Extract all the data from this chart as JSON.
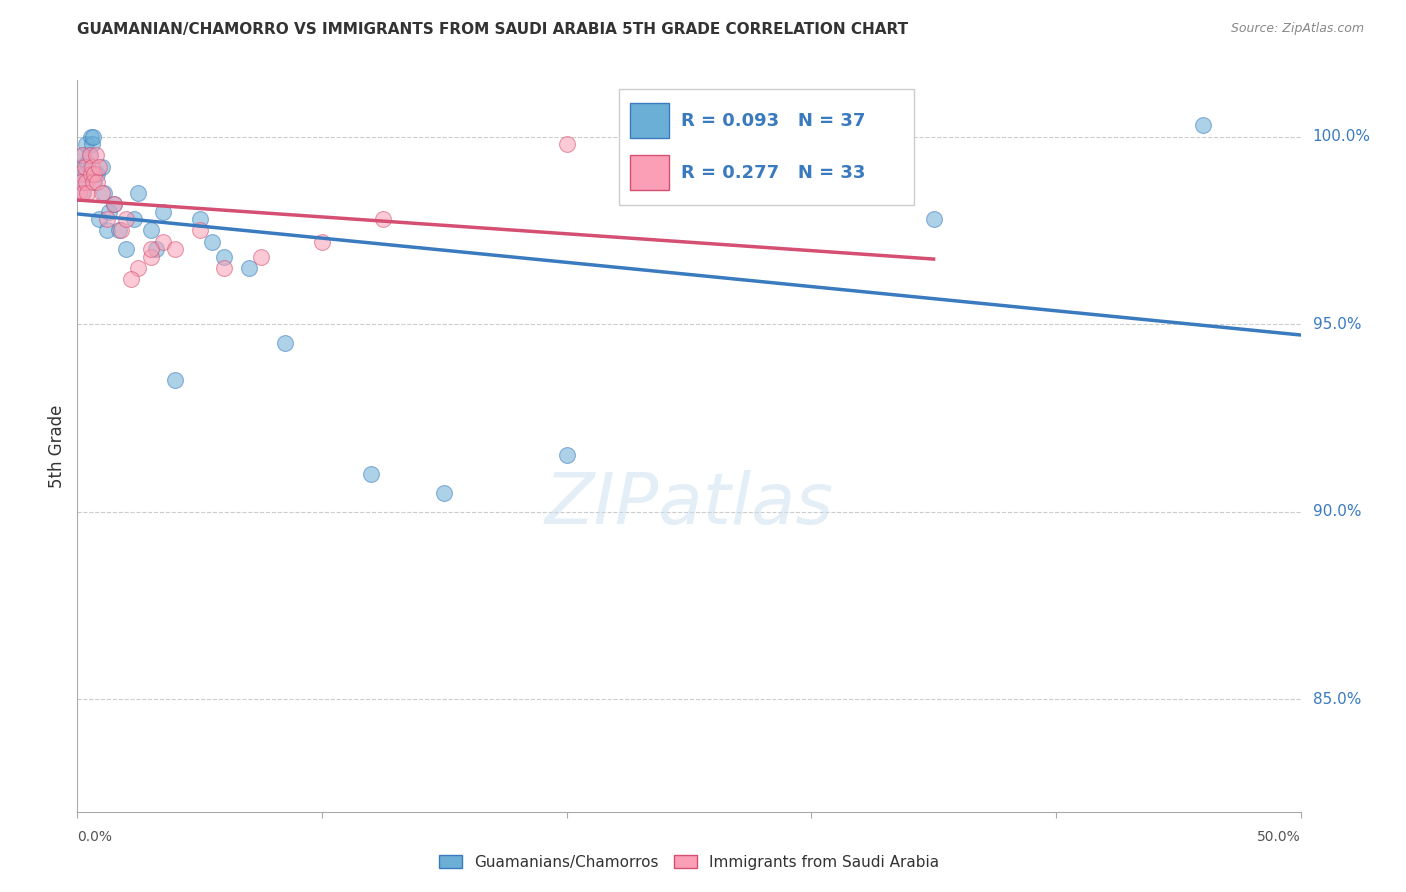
{
  "title": "GUAMANIAN/CHAMORRO VS IMMIGRANTS FROM SAUDI ARABIA 5TH GRADE CORRELATION CHART",
  "source": "Source: ZipAtlas.com",
  "ylabel": "5th Grade",
  "x_range": [
    0.0,
    50.0
  ],
  "y_range": [
    82.0,
    101.5
  ],
  "blue_R": 0.093,
  "blue_N": 37,
  "pink_R": 0.277,
  "pink_N": 33,
  "blue_color": "#6baed6",
  "pink_color": "#fa9fb5",
  "trendline_blue": "#3a7abf",
  "trendline_pink": "#d44f72",
  "legend_label_blue": "Guamanians/Chamorros",
  "legend_label_pink": "Immigrants from Saudi Arabia",
  "watermark": "ZIPatlas",
  "gridline_color": "#cccccc",
  "gridline_y": [
    85.0,
    90.0,
    95.0,
    100.0
  ],
  "right_tick_labels": [
    "85.0%",
    "90.0%",
    "95.0%",
    "100.0%"
  ],
  "blue_scatter_x": [
    0.1,
    0.15,
    0.2,
    0.25,
    0.3,
    0.35,
    0.4,
    0.5,
    0.55,
    0.6,
    0.65,
    0.7,
    0.8,
    0.9,
    1.0,
    1.1,
    1.2,
    1.3,
    1.5,
    1.7,
    2.0,
    2.3,
    2.5,
    3.0,
    3.5,
    4.0,
    5.0,
    5.5,
    6.0,
    7.0,
    3.2,
    8.5,
    12.0,
    15.0,
    20.0,
    35.0,
    46.0
  ],
  "blue_scatter_y": [
    98.8,
    99.2,
    98.5,
    99.5,
    99.0,
    99.8,
    99.3,
    99.5,
    100.0,
    99.8,
    100.0,
    98.8,
    99.0,
    97.8,
    99.2,
    98.5,
    97.5,
    98.0,
    98.2,
    97.5,
    97.0,
    97.8,
    98.5,
    97.5,
    98.0,
    93.5,
    97.8,
    97.2,
    96.8,
    96.5,
    97.0,
    94.5,
    91.0,
    90.5,
    91.5,
    97.8,
    100.3
  ],
  "pink_scatter_x": [
    0.05,
    0.1,
    0.15,
    0.2,
    0.25,
    0.3,
    0.35,
    0.4,
    0.5,
    0.55,
    0.6,
    0.65,
    0.7,
    0.75,
    0.8,
    0.9,
    1.0,
    1.2,
    1.5,
    1.8,
    2.0,
    2.5,
    3.0,
    3.5,
    4.0,
    5.0,
    2.2,
    3.0,
    6.0,
    7.5,
    10.0,
    12.5,
    20.0
  ],
  "pink_scatter_y": [
    98.5,
    99.0,
    98.8,
    99.5,
    98.5,
    99.2,
    98.8,
    98.5,
    99.5,
    99.0,
    99.2,
    98.8,
    99.0,
    99.5,
    98.8,
    99.2,
    98.5,
    97.8,
    98.2,
    97.5,
    97.8,
    96.5,
    96.8,
    97.2,
    97.0,
    97.5,
    96.2,
    97.0,
    96.5,
    96.8,
    97.2,
    97.8,
    99.8
  ]
}
